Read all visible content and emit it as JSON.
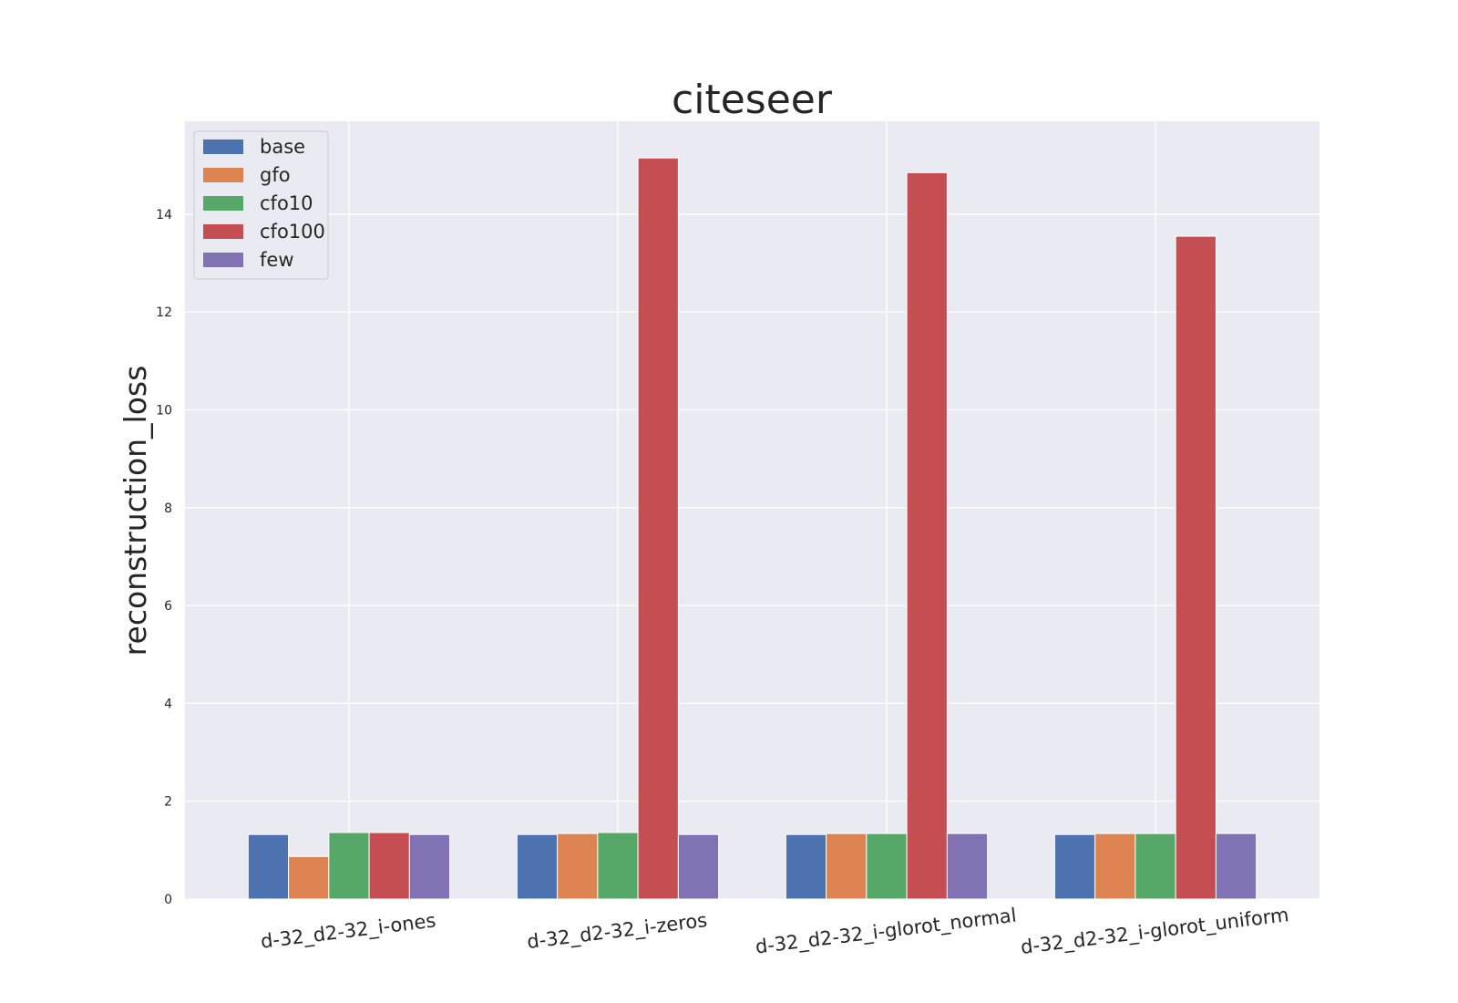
{
  "chart_data": {
    "type": "bar",
    "title": "citeseer",
    "xlabel": "",
    "ylabel": "reconstruction_loss",
    "ylim": [
      0,
      15.9
    ],
    "yticks": [
      0,
      2,
      4,
      6,
      8,
      10,
      12,
      14
    ],
    "grid": true,
    "legend_position": "top-left",
    "categories": [
      "d-32_d2-32_i-ones",
      "d-32_d2-32_i-zeros",
      "d-32_d2-32_i-glorot_normal",
      "d-32_d2-32_i-glorot_uniform"
    ],
    "series": [
      {
        "name": "base",
        "color": "#4c72b0",
        "values": [
          1.32,
          1.32,
          1.32,
          1.32
        ]
      },
      {
        "name": "gfo",
        "color": "#dd8452",
        "values": [
          0.87,
          1.34,
          1.34,
          1.34
        ]
      },
      {
        "name": "cfo10",
        "color": "#55a868",
        "values": [
          1.36,
          1.36,
          1.34,
          1.34
        ]
      },
      {
        "name": "cfo100",
        "color": "#c44e52",
        "values": [
          1.36,
          15.15,
          14.85,
          13.55
        ]
      },
      {
        "name": "few",
        "color": "#8172b3",
        "values": [
          1.32,
          1.32,
          1.34,
          1.34
        ]
      }
    ]
  }
}
